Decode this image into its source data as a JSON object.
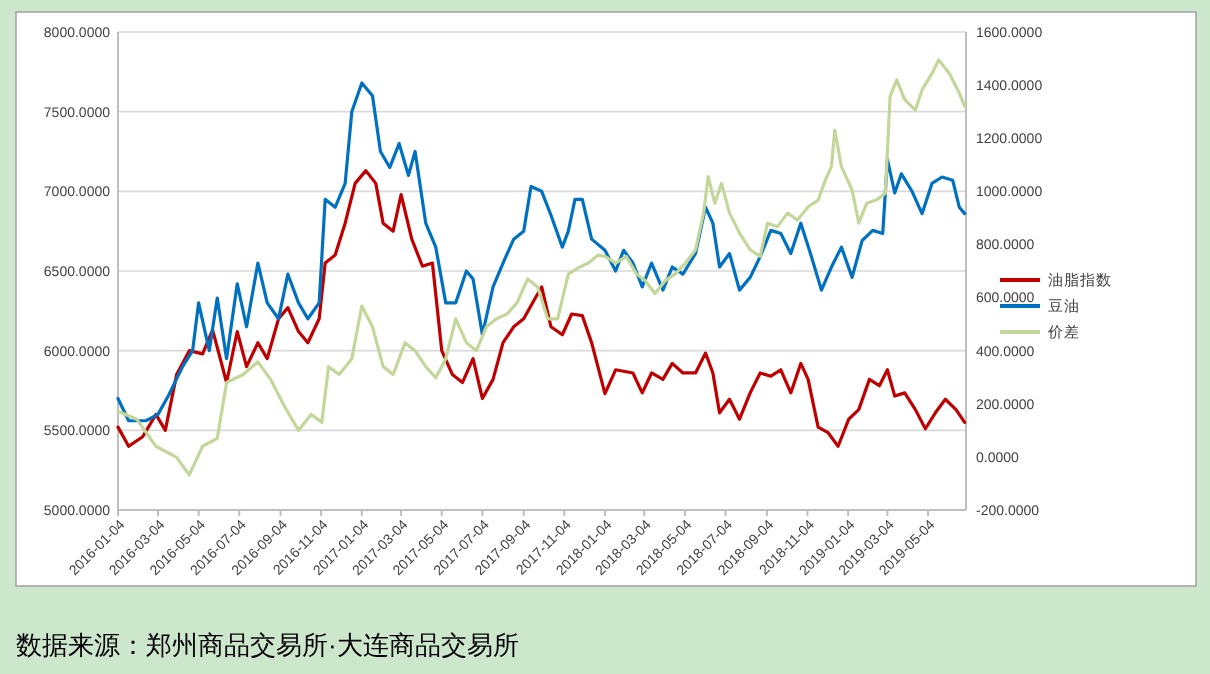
{
  "chart_data": {
    "type": "line",
    "annotations": [
      "数据来源：郑州商品交易所·大连商品交易所"
    ],
    "xlim": [
      "2016-01-04",
      "2019-06-30"
    ],
    "xticks": [
      "2016-01-04",
      "2016-03-04",
      "2016-05-04",
      "2016-07-04",
      "2016-09-04",
      "2016-11-04",
      "2017-01-04",
      "2017-03-04",
      "2017-05-04",
      "2017-07-04",
      "2017-09-04",
      "2017-11-04",
      "2018-01-04",
      "2018-03-04",
      "2018-05-04",
      "2018-07-04",
      "2018-09-04",
      "2018-11-04",
      "2019-01-04",
      "2019-03-04",
      "2019-05-04"
    ],
    "ylim": [
      5000,
      8000
    ],
    "yticks": [
      {
        "value": 5000,
        "label": "5000.0000"
      },
      {
        "value": 5500,
        "label": "5500.0000"
      },
      {
        "value": 6000,
        "label": "6000.0000"
      },
      {
        "value": 6500,
        "label": "6500.0000"
      },
      {
        "value": 7000,
        "label": "7000.0000"
      },
      {
        "value": 7500,
        "label": "7500.0000"
      },
      {
        "value": 8000,
        "label": "8000.0000"
      }
    ],
    "y2lim": [
      -200,
      1600
    ],
    "y2ticks": [
      {
        "value": -200,
        "label": "-200.0000"
      },
      {
        "value": 0,
        "label": "0.0000"
      },
      {
        "value": 200,
        "label": "200.0000"
      },
      {
        "value": 400,
        "label": "400.0000"
      },
      {
        "value": 600,
        "label": "600.0000"
      },
      {
        "value": 800,
        "label": "800.0000"
      },
      {
        "value": 1000,
        "label": "1000.0000"
      },
      {
        "value": 1200,
        "label": "1200.0000"
      },
      {
        "value": 1400,
        "label": "1400.0000"
      },
      {
        "value": 1600,
        "label": "1600.0000"
      }
    ],
    "grid": "y",
    "legend": "right",
    "marker": "none",
    "line_style": "solid",
    "series": [
      {
        "name": "油脂指数",
        "color": "#c00000",
        "x": [
          "2016-01-04",
          "2016-01-20",
          "2016-02-10",
          "2016-03-01",
          "2016-03-15",
          "2016-04-01",
          "2016-04-20",
          "2016-05-10",
          "2016-05-25",
          "2016-06-15",
          "2016-07-01",
          "2016-07-15",
          "2016-08-01",
          "2016-08-15",
          "2016-09-01",
          "2016-09-15",
          "2016-10-01",
          "2016-10-15",
          "2016-11-01",
          "2016-11-10",
          "2016-11-25",
          "2016-12-10",
          "2016-12-25",
          "2017-01-10",
          "2017-01-25",
          "2017-02-05",
          "2017-02-20",
          "2017-03-04",
          "2017-03-20",
          "2017-04-05",
          "2017-04-20",
          "2017-05-04",
          "2017-05-20",
          "2017-06-04",
          "2017-06-20",
          "2017-07-04",
          "2017-07-20",
          "2017-08-04",
          "2017-08-20",
          "2017-09-04",
          "2017-09-20",
          "2017-10-01",
          "2017-10-15",
          "2017-11-01",
          "2017-11-15",
          "2017-12-01",
          "2017-12-15",
          "2018-01-04",
          "2018-01-20",
          "2018-02-15",
          "2018-03-01",
          "2018-03-15",
          "2018-04-01",
          "2018-04-15",
          "2018-05-01",
          "2018-05-20",
          "2018-06-04",
          "2018-06-15",
          "2018-06-25",
          "2018-07-10",
          "2018-07-25",
          "2018-08-10",
          "2018-08-25",
          "2018-09-10",
          "2018-09-25",
          "2018-10-10",
          "2018-10-25",
          "2018-11-05",
          "2018-11-20",
          "2018-12-05",
          "2018-12-20",
          "2019-01-05",
          "2019-01-20",
          "2019-02-05",
          "2019-02-20",
          "2019-03-04",
          "2019-03-15",
          "2019-03-30",
          "2019-04-15",
          "2019-04-30",
          "2019-05-15",
          "2019-05-30",
          "2019-06-15",
          "2019-06-28"
        ],
        "values": [
          5520,
          5400,
          5460,
          5600,
          5500,
          5850,
          6000,
          5980,
          6130,
          5800,
          6120,
          5900,
          6050,
          5950,
          6200,
          6270,
          6120,
          6050,
          6200,
          6550,
          6600,
          6800,
          7050,
          7130,
          7050,
          6800,
          6750,
          6980,
          6700,
          6530,
          6550,
          6000,
          5850,
          5800,
          5950,
          5700,
          5820,
          6050,
          6150,
          6200,
          6320,
          6400,
          6150,
          6100,
          6230,
          6220,
          6050,
          5730,
          5880,
          5860,
          5735,
          5860,
          5820,
          5920,
          5860,
          5860,
          5985,
          5860,
          5610,
          5695,
          5570,
          5735,
          5860,
          5840,
          5880,
          5735,
          5920,
          5820,
          5520,
          5485,
          5400,
          5570,
          5630,
          5820,
          5780,
          5880,
          5715,
          5735,
          5630,
          5510,
          5610,
          5695,
          5630,
          5550
        ]
      },
      {
        "name": "豆油",
        "color": "#0070c0",
        "x": [
          "2016-01-04",
          "2016-01-20",
          "2016-02-15",
          "2016-03-04",
          "2016-03-20",
          "2016-04-10",
          "2016-04-25",
          "2016-05-04",
          "2016-05-20",
          "2016-06-01",
          "2016-06-15",
          "2016-07-01",
          "2016-07-15",
          "2016-08-01",
          "2016-08-15",
          "2016-09-01",
          "2016-09-15",
          "2016-10-01",
          "2016-10-15",
          "2016-11-01",
          "2016-11-10",
          "2016-11-25",
          "2016-12-10",
          "2016-12-20",
          "2017-01-04",
          "2017-01-20",
          "2017-02-01",
          "2017-02-15",
          "2017-03-01",
          "2017-03-15",
          "2017-03-25",
          "2017-04-10",
          "2017-04-25",
          "2017-05-10",
          "2017-05-25",
          "2017-06-10",
          "2017-06-20",
          "2017-07-04",
          "2017-07-20",
          "2017-08-04",
          "2017-08-20",
          "2017-09-04",
          "2017-09-15",
          "2017-10-01",
          "2017-10-15",
          "2017-11-01",
          "2017-11-10",
          "2017-11-20",
          "2017-12-01",
          "2017-12-15",
          "2018-01-04",
          "2018-01-20",
          "2018-02-01",
          "2018-02-15",
          "2018-03-01",
          "2018-03-15",
          "2018-04-01",
          "2018-04-15",
          "2018-05-01",
          "2018-05-20",
          "2018-06-04",
          "2018-06-15",
          "2018-06-25",
          "2018-07-10",
          "2018-07-25",
          "2018-08-10",
          "2018-08-25",
          "2018-09-10",
          "2018-09-25",
          "2018-10-10",
          "2018-10-25",
          "2018-11-10",
          "2018-11-25",
          "2018-12-10",
          "2018-12-25",
          "2019-01-10",
          "2019-01-25",
          "2019-02-10",
          "2019-02-25",
          "2019-03-04",
          "2019-03-15",
          "2019-03-25",
          "2019-04-10",
          "2019-04-25",
          "2019-05-10",
          "2019-05-25",
          "2019-06-10",
          "2019-06-20",
          "2019-06-28"
        ],
        "values": [
          5700,
          5560,
          5560,
          5600,
          5720,
          5900,
          6000,
          6300,
          6000,
          6330,
          5950,
          6420,
          6150,
          6550,
          6300,
          6200,
          6480,
          6300,
          6200,
          6300,
          6950,
          6900,
          7050,
          7500,
          7680,
          7600,
          7250,
          7150,
          7300,
          7100,
          7250,
          6800,
          6650,
          6300,
          6300,
          6500,
          6450,
          6100,
          6400,
          6550,
          6700,
          6750,
          7030,
          7000,
          6850,
          6650,
          6750,
          6950,
          6950,
          6700,
          6630,
          6500,
          6630,
          6550,
          6400,
          6550,
          6380,
          6525,
          6480,
          6610,
          6900,
          6800,
          6525,
          6610,
          6380,
          6460,
          6590,
          6755,
          6735,
          6610,
          6800,
          6590,
          6380,
          6525,
          6650,
          6460,
          6690,
          6755,
          6735,
          7200,
          6990,
          7110,
          7000,
          6860,
          7050,
          7090,
          7070,
          6900,
          6860
        ]
      },
      {
        "name": "价差",
        "color": "#c4d79b",
        "axis": "y2",
        "x": [
          "2016-01-04",
          "2016-02-01",
          "2016-03-01",
          "2016-04-01",
          "2016-04-20",
          "2016-05-10",
          "2016-06-01",
          "2016-06-15",
          "2016-07-10",
          "2016-08-01",
          "2016-08-20",
          "2016-09-10",
          "2016-10-01",
          "2016-10-20",
          "2016-11-05",
          "2016-11-15",
          "2016-12-01",
          "2016-12-20",
          "2017-01-04",
          "2017-01-20",
          "2017-02-05",
          "2017-02-20",
          "2017-03-10",
          "2017-03-25",
          "2017-04-10",
          "2017-04-25",
          "2017-05-10",
          "2017-05-25",
          "2017-06-10",
          "2017-06-25",
          "2017-07-10",
          "2017-07-25",
          "2017-08-10",
          "2017-08-25",
          "2017-09-10",
          "2017-09-25",
          "2017-10-10",
          "2017-10-25",
          "2017-11-10",
          "2017-11-25",
          "2017-12-10",
          "2017-12-25",
          "2018-01-04",
          "2018-01-20",
          "2018-02-05",
          "2018-02-20",
          "2018-03-05",
          "2018-03-20",
          "2018-04-05",
          "2018-04-20",
          "2018-05-05",
          "2018-05-20",
          "2018-06-01",
          "2018-06-08",
          "2018-06-18",
          "2018-06-28",
          "2018-07-10",
          "2018-07-25",
          "2018-08-10",
          "2018-08-25",
          "2018-09-05",
          "2018-09-20",
          "2018-10-05",
          "2018-10-20",
          "2018-11-05",
          "2018-11-20",
          "2018-12-01",
          "2018-12-10",
          "2018-12-15",
          "2018-12-25",
          "2019-01-10",
          "2019-01-20",
          "2019-02-01",
          "2019-02-15",
          "2019-03-01",
          "2019-03-08",
          "2019-03-18",
          "2019-03-30",
          "2019-04-15",
          "2019-04-25",
          "2019-05-10",
          "2019-05-20",
          "2019-06-05",
          "2019-06-20",
          "2019-06-28"
        ],
        "values": [
          172,
          142,
          40,
          -2,
          -68,
          40,
          70,
          280,
          310,
          358,
          292,
          190,
          100,
          160,
          130,
          340,
          310,
          370,
          568,
          490,
          340,
          310,
          430,
          400,
          340,
          298,
          370,
          520,
          430,
          400,
          490,
          520,
          538,
          580,
          670,
          640,
          520,
          520,
          688,
          712,
          730,
          760,
          755,
          730,
          755,
          690,
          665,
          615,
          665,
          690,
          730,
          780,
          918,
          1055,
          955,
          1030,
          918,
          843,
          780,
          755,
          880,
          867,
          918,
          892,
          942,
          967,
          1043,
          1093,
          1231,
          1093,
          1005,
          880,
          955,
          967,
          993,
          1357,
          1420,
          1345,
          1306,
          1382,
          1444,
          1495,
          1444,
          1370,
          1320
        ]
      }
    ]
  }
}
